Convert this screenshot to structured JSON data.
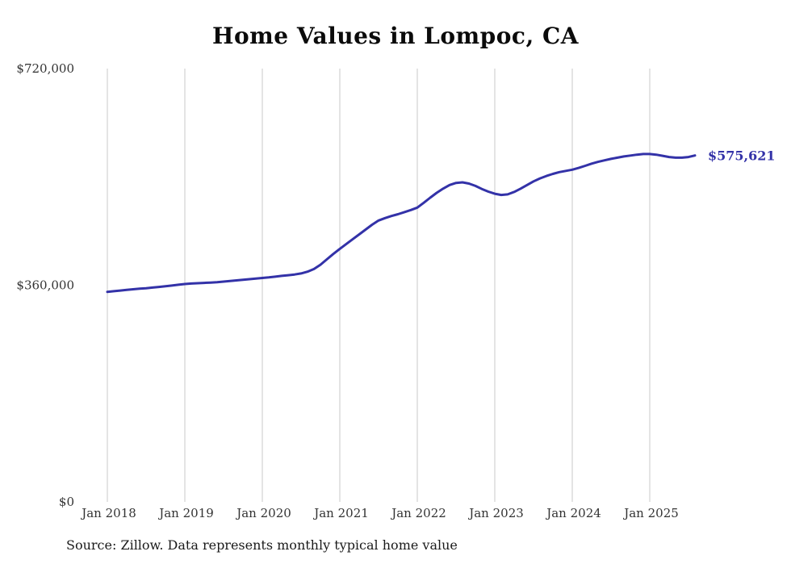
{
  "title": "Home Values in Lompoc, CA",
  "source_note": "Source: Zillow. Data represents monthly typical home value",
  "chart_data": {
    "type": "line",
    "title": "Home Values in Lompoc, CA",
    "series_name": "Typical home value",
    "x_start": "Jan 2018",
    "x_end": "Aug 2025",
    "frequency": "monthly",
    "x_ticks": [
      "Jan 2018",
      "Jan 2019",
      "Jan 2020",
      "Jan 2021",
      "Jan 2022",
      "Jan 2023",
      "Jan 2024",
      "Jan 2025"
    ],
    "y_ticks": [
      {
        "label": "$0",
        "value": 0
      },
      {
        "label": "$360,000",
        "value": 360000
      },
      {
        "label": "$720,000",
        "value": 720000
      }
    ],
    "ylim": [
      0,
      720000
    ],
    "grid": "vertical-only",
    "legend": "none",
    "line_color": "#3332a8",
    "gridline_color": "#c9c9c9",
    "end_label": "$575,621",
    "end_value": 575621,
    "values": [
      349000,
      350100,
      351200,
      352300,
      353300,
      354200,
      355100,
      356100,
      357200,
      358300,
      359500,
      360800,
      362000,
      362800,
      363400,
      363900,
      364400,
      365100,
      366000,
      367000,
      368000,
      369100,
      370100,
      371100,
      372000,
      373000,
      374200,
      375500,
      376600,
      377800,
      379600,
      382500,
      387000,
      394000,
      403000,
      412000,
      420500,
      428500,
      436500,
      444500,
      452500,
      460500,
      467500,
      471500,
      475000,
      478000,
      481500,
      485000,
      489000,
      497000,
      505500,
      513500,
      520500,
      526500,
      530000,
      531000,
      529000,
      525000,
      520000,
      515500,
      512000,
      510000,
      511000,
      515000,
      520500,
      526500,
      532500,
      537500,
      541500,
      545000,
      548000,
      550000,
      552000,
      555000,
      558500,
      562000,
      565000,
      567500,
      570000,
      572000,
      574000,
      575500,
      577000,
      578000,
      578000,
      577000,
      575000,
      573000,
      572000,
      572000,
      573000,
      575621
    ]
  }
}
